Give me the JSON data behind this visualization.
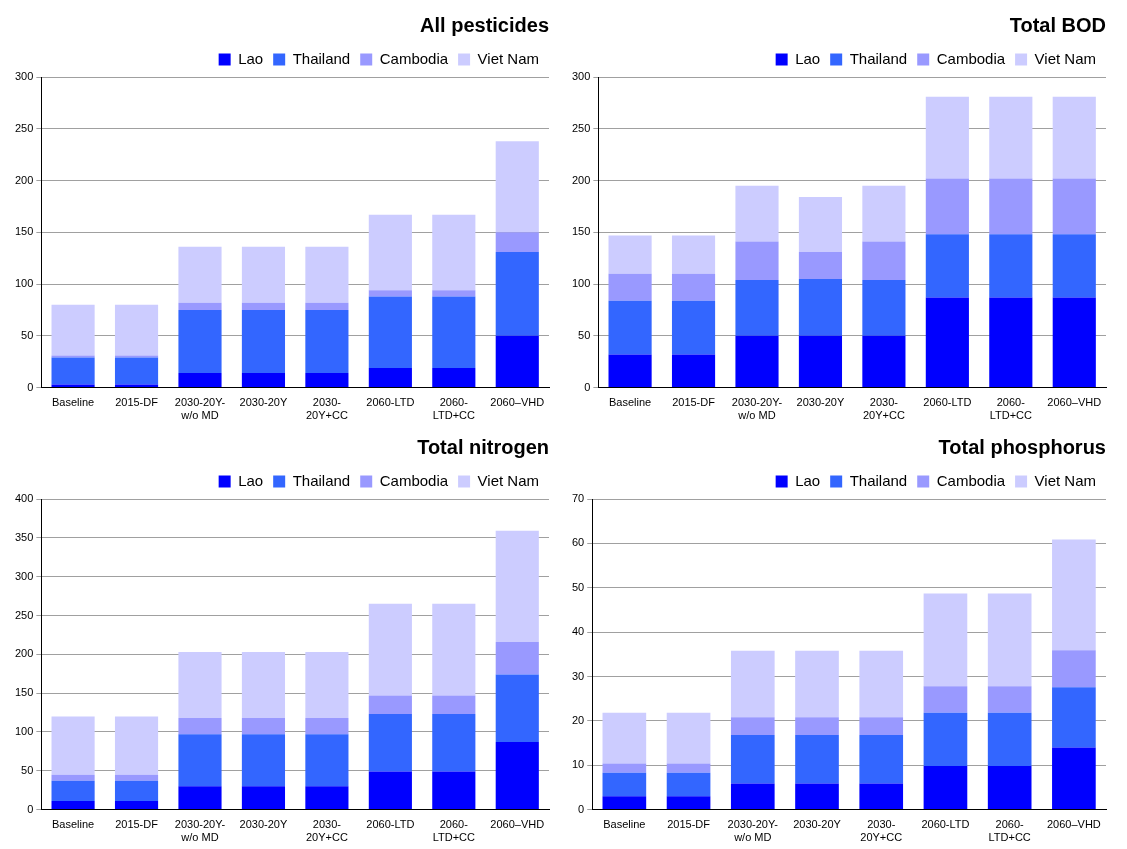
{
  "chart_data": [
    {
      "type": "bar",
      "title": "All pesticides",
      "stacked": true,
      "legend": "top right",
      "grid": "y",
      "categories": [
        "Baseline",
        "2015-DF",
        "2030-20Y-w/o MD",
        "2030-20Y",
        "2030-20Y+CC",
        "2060-LTD",
        "2060-LTD+CC",
        "2060–VHD"
      ],
      "ylim": [
        0,
        300
      ],
      "yticks": [
        0,
        50,
        100,
        150,
        200,
        250,
        300
      ],
      "series": [
        {
          "name": "Lao",
          "color": "#0000ff",
          "values": [
            3,
            3,
            14,
            14,
            14,
            19,
            19,
            50
          ]
        },
        {
          "name": "Thailand",
          "color": "#3366ff",
          "values": [
            26,
            26,
            61,
            61,
            61,
            69,
            69,
            81
          ]
        },
        {
          "name": "Cambodia",
          "color": "#9999ff",
          "values": [
            2,
            2,
            7,
            7,
            7,
            6,
            6,
            19
          ]
        },
        {
          "name": "Viet Nam",
          "color": "#ccccff",
          "values": [
            49,
            49,
            54,
            54,
            54,
            73,
            73,
            88
          ]
        }
      ]
    },
    {
      "type": "bar",
      "title": "Total BOD",
      "stacked": true,
      "legend": "top right",
      "grid": "y",
      "categories": [
        "Baseline",
        "2015-DF",
        "2030-20Y-w/o MD",
        "2030-20Y",
        "2030-20Y+CC",
        "2060-LTD",
        "2060-LTD+CC",
        "2060–VHD"
      ],
      "ylim": [
        0,
        300
      ],
      "yticks": [
        0,
        50,
        100,
        150,
        200,
        250,
        300
      ],
      "series": [
        {
          "name": "Lao",
          "color": "#0000ff",
          "values": [
            32,
            32,
            50,
            50,
            50,
            87,
            87,
            87
          ]
        },
        {
          "name": "Thailand",
          "color": "#3366ff",
          "values": [
            52,
            52,
            54,
            55,
            54,
            61,
            61,
            61
          ]
        },
        {
          "name": "Cambodia",
          "color": "#9999ff",
          "values": [
            26,
            26,
            37,
            26,
            37,
            54,
            54,
            54
          ]
        },
        {
          "name": "Viet Nam",
          "color": "#ccccff",
          "values": [
            37,
            37,
            54,
            53,
            54,
            79,
            79,
            79
          ]
        }
      ]
    },
    {
      "type": "bar",
      "title": "Total nitrogen",
      "stacked": true,
      "legend": "top right",
      "grid": "y",
      "categories": [
        "Baseline",
        "2015-DF",
        "2030-20Y-w/o MD",
        "2030-20Y",
        "2030-20Y+CC",
        "2060-LTD",
        "2060-LTD+CC",
        "2060–VHD"
      ],
      "ylim": [
        0,
        400
      ],
      "yticks": [
        0,
        50,
        100,
        150,
        200,
        250,
        300,
        350,
        400
      ],
      "series": [
        {
          "name": "Lao",
          "color": "#0000ff",
          "values": [
            11,
            11,
            30,
            30,
            30,
            49,
            49,
            87
          ]
        },
        {
          "name": "Thailand",
          "color": "#3366ff",
          "values": [
            26,
            26,
            67,
            67,
            67,
            74,
            74,
            87
          ]
        },
        {
          "name": "Cambodia",
          "color": "#9999ff",
          "values": [
            8,
            8,
            21,
            21,
            21,
            24,
            24,
            42
          ]
        },
        {
          "name": "Viet Nam",
          "color": "#ccccff",
          "values": [
            75,
            75,
            85,
            85,
            85,
            118,
            118,
            143
          ]
        }
      ]
    },
    {
      "type": "bar",
      "title": "Total phosphorus",
      "stacked": true,
      "legend": "top right",
      "grid": "y",
      "categories": [
        "Baseline",
        "2015-DF",
        "2030-20Y-w/o MD",
        "2030-20Y",
        "2030-20Y+CC",
        "2060-LTD",
        "2060-LTD+CC",
        "2060–VHD"
      ],
      "ylim": [
        0,
        70
      ],
      "yticks": [
        0,
        10,
        20,
        30,
        40,
        50,
        60,
        70
      ],
      "series": [
        {
          "name": "Lao",
          "color": "#0000ff",
          "values": [
            3,
            3,
            5.9,
            5.9,
            5.9,
            9.8,
            9.8,
            14
          ]
        },
        {
          "name": "Thailand",
          "color": "#3366ff",
          "values": [
            5.3,
            5.3,
            10.9,
            10.9,
            10.9,
            12,
            12,
            13.6
          ]
        },
        {
          "name": "Cambodia",
          "color": "#9999ff",
          "values": [
            2.1,
            2.1,
            4,
            4,
            4,
            6,
            6,
            8.3
          ]
        },
        {
          "name": "Viet Nam",
          "color": "#ccccff",
          "values": [
            11.4,
            11.4,
            15,
            15,
            15,
            20.9,
            20.9,
            25
          ]
        }
      ]
    }
  ]
}
